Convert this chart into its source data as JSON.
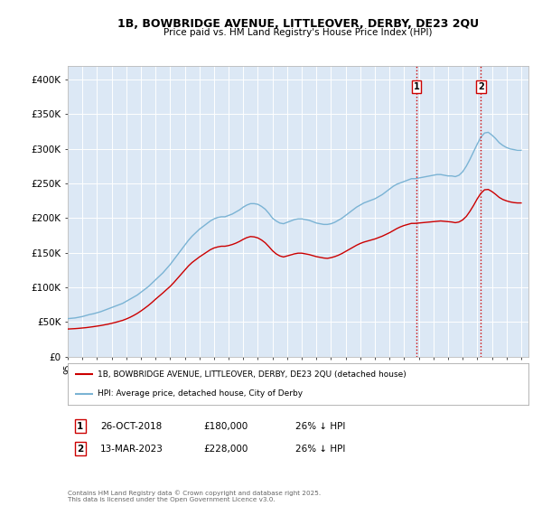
{
  "title": "1B, BOWBRIDGE AVENUE, LITTLEOVER, DERBY, DE23 2QU",
  "subtitle": "Price paid vs. HM Land Registry's House Price Index (HPI)",
  "ylim": [
    0,
    420000
  ],
  "yticks": [
    0,
    50000,
    100000,
    150000,
    200000,
    250000,
    300000,
    350000,
    400000
  ],
  "ytick_labels": [
    "£0",
    "£50K",
    "£100K",
    "£150K",
    "£200K",
    "£250K",
    "£300K",
    "£350K",
    "£400K"
  ],
  "hpi_color": "#7ab3d4",
  "price_color": "#cc0000",
  "vline_color": "#cc0000",
  "plot_background": "#dce8f5",
  "grid_color": "#ffffff",
  "marker1_date_str": "26-OCT-2018",
  "marker1_price_str": "£180,000",
  "marker1_hpi_pct": "26% ↓ HPI",
  "marker2_date_str": "13-MAR-2023",
  "marker2_price_str": "£228,000",
  "marker2_hpi_pct": "26% ↓ HPI",
  "legend_line1": "1B, BOWBRIDGE AVENUE, LITTLEOVER, DERBY, DE23 2QU (detached house)",
  "legend_line2": "HPI: Average price, detached house, City of Derby",
  "footnote": "Contains HM Land Registry data © Crown copyright and database right 2025.\nThis data is licensed under the Open Government Licence v3.0.",
  "xstart": 1995.0,
  "xend": 2026.5,
  "date1": 2018.833,
  "date2": 2023.25,
  "hpi_years": [
    1995.0,
    1995.25,
    1995.5,
    1995.75,
    1996.0,
    1996.25,
    1996.5,
    1996.75,
    1997.0,
    1997.25,
    1997.5,
    1997.75,
    1998.0,
    1998.25,
    1998.5,
    1998.75,
    1999.0,
    1999.25,
    1999.5,
    1999.75,
    2000.0,
    2000.25,
    2000.5,
    2000.75,
    2001.0,
    2001.25,
    2001.5,
    2001.75,
    2002.0,
    2002.25,
    2002.5,
    2002.75,
    2003.0,
    2003.25,
    2003.5,
    2003.75,
    2004.0,
    2004.25,
    2004.5,
    2004.75,
    2005.0,
    2005.25,
    2005.5,
    2005.75,
    2006.0,
    2006.25,
    2006.5,
    2006.75,
    2007.0,
    2007.25,
    2007.5,
    2007.75,
    2008.0,
    2008.25,
    2008.5,
    2008.75,
    2009.0,
    2009.25,
    2009.5,
    2009.75,
    2010.0,
    2010.25,
    2010.5,
    2010.75,
    2011.0,
    2011.25,
    2011.5,
    2011.75,
    2012.0,
    2012.25,
    2012.5,
    2012.75,
    2013.0,
    2013.25,
    2013.5,
    2013.75,
    2014.0,
    2014.25,
    2014.5,
    2014.75,
    2015.0,
    2015.25,
    2015.5,
    2015.75,
    2016.0,
    2016.25,
    2016.5,
    2016.75,
    2017.0,
    2017.25,
    2017.5,
    2017.75,
    2018.0,
    2018.25,
    2018.5,
    2018.75,
    2019.0,
    2019.25,
    2019.5,
    2019.75,
    2020.0,
    2020.25,
    2020.5,
    2020.75,
    2021.0,
    2021.25,
    2021.5,
    2021.75,
    2022.0,
    2022.25,
    2022.5,
    2022.75,
    2023.0,
    2023.25,
    2023.5,
    2023.75,
    2024.0,
    2024.25,
    2024.5,
    2024.75,
    2025.0,
    2025.25,
    2025.5,
    2025.75,
    2026.0
  ],
  "hpi_values": [
    55000,
    55500,
    56000,
    57000,
    58000,
    59500,
    61000,
    62000,
    63500,
    65000,
    67000,
    69000,
    71000,
    73000,
    75000,
    77000,
    80000,
    83000,
    86000,
    89000,
    93000,
    97000,
    101000,
    106000,
    111000,
    116000,
    121000,
    127000,
    133000,
    140000,
    147000,
    154000,
    161000,
    168000,
    174000,
    179000,
    184000,
    188000,
    192000,
    196000,
    199000,
    201000,
    202000,
    202000,
    204000,
    206000,
    209000,
    212000,
    216000,
    219000,
    221000,
    221000,
    220000,
    217000,
    213000,
    207000,
    200000,
    196000,
    193000,
    192000,
    194000,
    196000,
    198000,
    199000,
    199000,
    198000,
    197000,
    195000,
    193000,
    192000,
    191000,
    191000,
    192000,
    194000,
    197000,
    200000,
    204000,
    208000,
    212000,
    216000,
    219000,
    222000,
    224000,
    226000,
    228000,
    231000,
    234000,
    238000,
    242000,
    246000,
    249000,
    251000,
    253000,
    255000,
    257000,
    257000,
    258000,
    259000,
    260000,
    261000,
    262000,
    263000,
    263000,
    262000,
    261000,
    261000,
    260000,
    262000,
    267000,
    275000,
    285000,
    296000,
    307000,
    317000,
    323000,
    324000,
    320000,
    315000,
    309000,
    305000,
    302000,
    300000,
    299000,
    298000,
    298000
  ],
  "price_years": [
    1995.0,
    1995.25,
    1995.5,
    1995.75,
    1996.0,
    1996.25,
    1996.5,
    1996.75,
    1997.0,
    1997.25,
    1997.5,
    1997.75,
    1998.0,
    1998.25,
    1998.5,
    1998.75,
    1999.0,
    1999.25,
    1999.5,
    1999.75,
    2000.0,
    2000.25,
    2000.5,
    2000.75,
    2001.0,
    2001.25,
    2001.5,
    2001.75,
    2002.0,
    2002.25,
    2002.5,
    2002.75,
    2003.0,
    2003.25,
    2003.5,
    2003.75,
    2004.0,
    2004.25,
    2004.5,
    2004.75,
    2005.0,
    2005.25,
    2005.5,
    2005.75,
    2006.0,
    2006.25,
    2006.5,
    2006.75,
    2007.0,
    2007.25,
    2007.5,
    2007.75,
    2008.0,
    2008.25,
    2008.5,
    2008.75,
    2009.0,
    2009.25,
    2009.5,
    2009.75,
    2010.0,
    2010.25,
    2010.5,
    2010.75,
    2011.0,
    2011.25,
    2011.5,
    2011.75,
    2012.0,
    2012.25,
    2012.5,
    2012.75,
    2013.0,
    2013.25,
    2013.5,
    2013.75,
    2014.0,
    2014.25,
    2014.5,
    2014.75,
    2015.0,
    2015.25,
    2015.5,
    2015.75,
    2016.0,
    2016.25,
    2016.5,
    2016.75,
    2017.0,
    2017.25,
    2017.5,
    2017.75,
    2018.0,
    2018.25,
    2018.5,
    2018.75,
    2019.0,
    2019.25,
    2019.5,
    2019.75,
    2020.0,
    2020.25,
    2020.5,
    2020.75,
    2021.0,
    2021.25,
    2021.5,
    2021.75,
    2022.0,
    2022.25,
    2022.5,
    2022.75,
    2023.0,
    2023.25,
    2023.5,
    2023.75,
    2024.0,
    2024.25,
    2024.5,
    2024.75,
    2025.0,
    2025.25,
    2025.5,
    2025.75,
    2026.0
  ],
  "price_values": [
    40000,
    40300,
    40600,
    41000,
    41500,
    42000,
    42700,
    43400,
    44200,
    45000,
    46000,
    47000,
    48200,
    49500,
    51000,
    52500,
    54500,
    56800,
    59500,
    62500,
    66000,
    69800,
    73800,
    78200,
    83000,
    87500,
    92000,
    96800,
    101500,
    107000,
    113000,
    119000,
    125000,
    131000,
    136000,
    140000,
    144000,
    147500,
    151000,
    154500,
    157000,
    158500,
    159500,
    159500,
    160500,
    162000,
    164000,
    166500,
    169500,
    172000,
    173500,
    173000,
    171500,
    168500,
    164500,
    159000,
    153000,
    148500,
    145500,
    144000,
    145500,
    147000,
    148500,
    149500,
    149500,
    148500,
    147500,
    146000,
    144500,
    143500,
    142500,
    142000,
    143000,
    144500,
    146500,
    149000,
    152000,
    155000,
    158000,
    161000,
    163500,
    165500,
    167000,
    168500,
    170000,
    172000,
    174000,
    176500,
    179000,
    182000,
    185000,
    187500,
    189500,
    191000,
    192500,
    192500,
    193000,
    193500,
    194000,
    194500,
    195000,
    195500,
    196000,
    195500,
    195000,
    194500,
    193500,
    194500,
    197500,
    202500,
    210000,
    218500,
    228000,
    236000,
    241000,
    241500,
    238500,
    234500,
    230000,
    227000,
    225000,
    223500,
    222500,
    222000,
    222000
  ]
}
